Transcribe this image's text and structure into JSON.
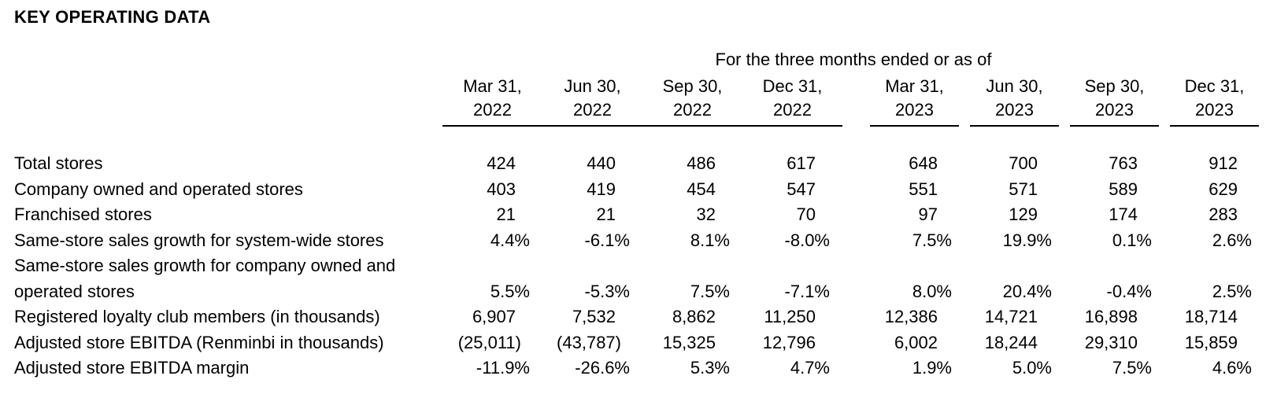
{
  "title": "KEY OPERATING DATA",
  "table": {
    "group_header": "For the three months ended or as of",
    "columns": [
      {
        "month": "Mar 31,",
        "year": "2022"
      },
      {
        "month": "Jun 30,",
        "year": "2022"
      },
      {
        "month": "Sep 30,",
        "year": "2022"
      },
      {
        "month": "Dec 31,",
        "year": "2022"
      },
      {
        "month": "Mar 31,",
        "year": "2023"
      },
      {
        "month": "Jun 30,",
        "year": "2023"
      },
      {
        "month": "Sep 30,",
        "year": "2023"
      },
      {
        "month": "Dec 31,",
        "year": "2023"
      }
    ],
    "rows": [
      {
        "label": "Total stores",
        "values": [
          "424",
          "440",
          "486",
          "617",
          "648",
          "700",
          "763",
          "912"
        ]
      },
      {
        "label": "Company owned and operated stores",
        "values": [
          "403",
          "419",
          "454",
          "547",
          "551",
          "571",
          "589",
          "629"
        ]
      },
      {
        "label": "Franchised stores",
        "values": [
          "21",
          "21",
          "32",
          "70",
          "97",
          "129",
          "174",
          "283"
        ]
      },
      {
        "label": "Same-store sales growth for system-wide stores",
        "values": [
          "4.4%",
          "-6.1%",
          "8.1%",
          "-8.0%",
          "7.5%",
          "19.9%",
          "0.1%",
          "2.6%"
        ]
      },
      {
        "label_line1": "Same-store sales growth for company owned and",
        "label_line2": "operated stores",
        "values": [
          "5.5%",
          "-5.3%",
          "7.5%",
          "-7.1%",
          "8.0%",
          "20.4%",
          "-0.4%",
          "2.5%"
        ]
      },
      {
        "label": "Registered loyalty club members (in thousands)",
        "values": [
          "6,907",
          "7,532",
          "8,862",
          "11,250",
          "12,386",
          "14,721",
          "16,898",
          "18,714"
        ]
      },
      {
        "label": "Adjusted store EBITDA (Renminbi in thousands)",
        "values": [
          "(25,011)",
          "(43,787)",
          "15,325",
          "12,796",
          "6,002",
          "18,244",
          "29,310",
          "15,859"
        ]
      },
      {
        "label": "Adjusted store EBITDA margin",
        "values": [
          "-11.9%",
          "-26.6%",
          "5.3%",
          "4.7%",
          "1.9%",
          "5.0%",
          "7.5%",
          "4.6%"
        ]
      }
    ]
  }
}
